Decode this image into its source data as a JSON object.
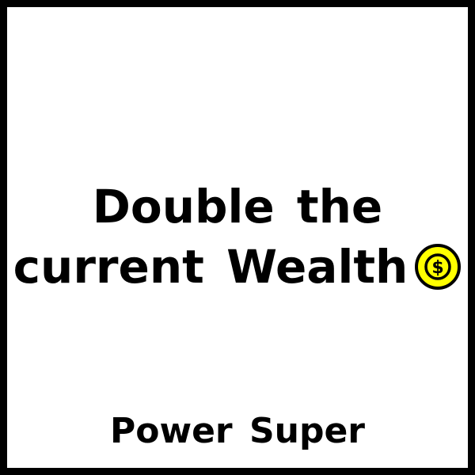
{
  "card": {
    "effect_line_1": "Double the",
    "effect_line_2": "current Wealth",
    "type_label": "Power Super",
    "icon": "coin-dollar-icon"
  },
  "colors": {
    "border": "#000000",
    "background": "#ffffff",
    "text": "#000000",
    "coin_fill": "#ffff00"
  }
}
